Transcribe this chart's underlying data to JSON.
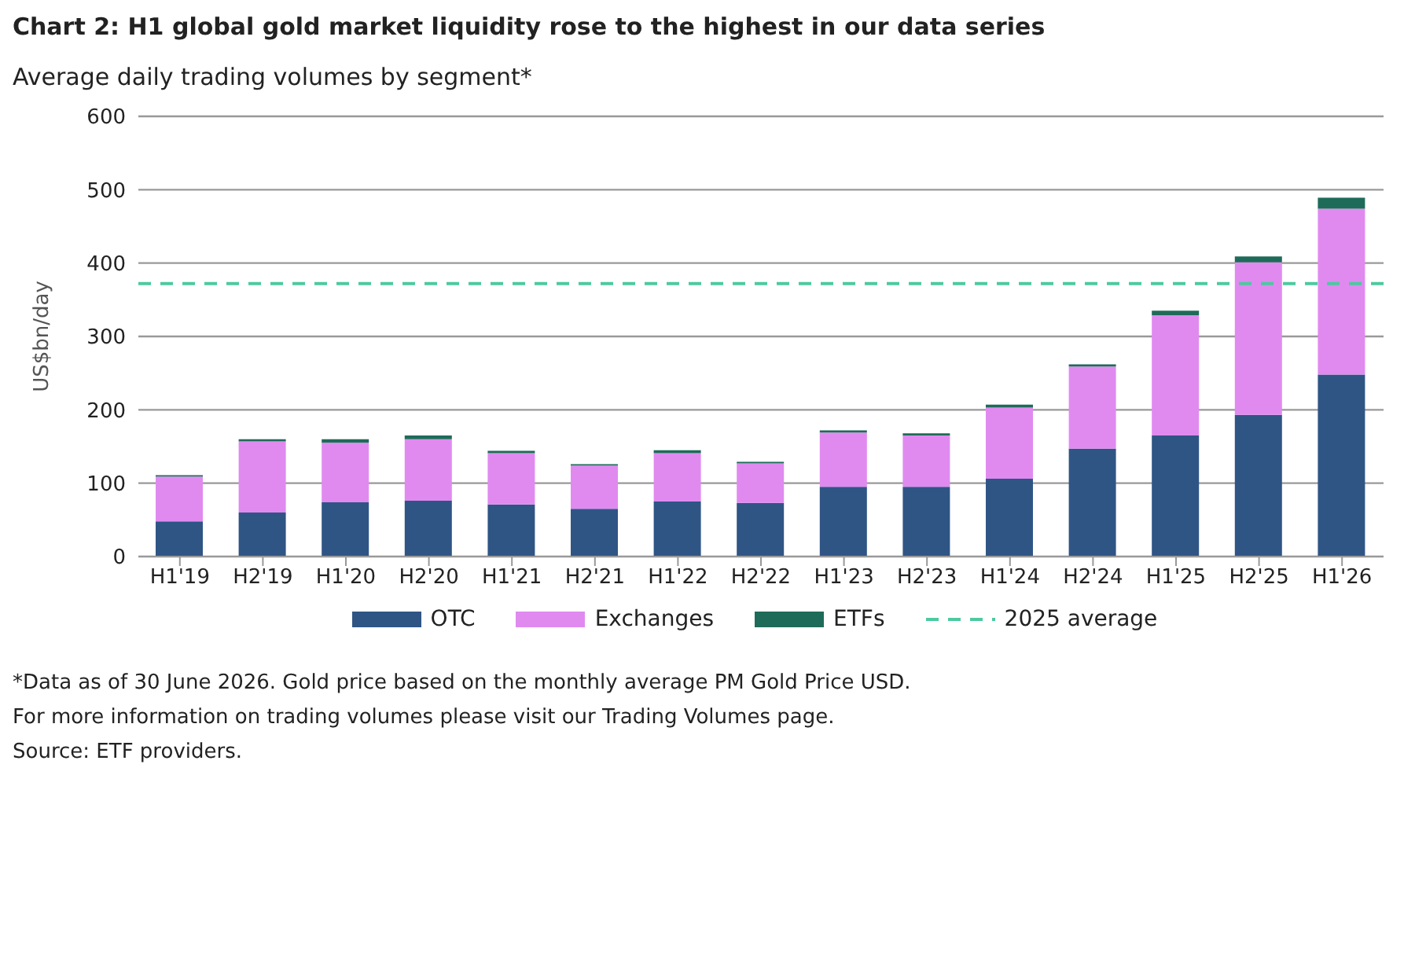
{
  "chart_data": {
    "type": "bar",
    "title": "Chart 2: H1 global gold market liquidity rose to the highest in our data series",
    "subtitle": "Average daily trading volumes by segment*",
    "ylabel": "US$bn/day",
    "categories": [
      "H1'19",
      "H2'19",
      "H1'20",
      "H2'20",
      "H1'21",
      "H2'21",
      "H1'22",
      "H2'22",
      "H1'23",
      "H2'23",
      "H1'24",
      "H2'24",
      "H1'25",
      "H2'25",
      "H1'26"
    ],
    "series": [
      {
        "name": "OTC",
        "color": "#2f5585",
        "values": [
          48,
          60,
          74,
          76,
          71,
          65,
          75,
          73,
          95,
          95,
          106,
          147,
          165,
          193,
          248
        ]
      },
      {
        "name": "Exchanges",
        "color": "#e08af0",
        "values": [
          61,
          97,
          81,
          84,
          70,
          59,
          66,
          54,
          74,
          70,
          97,
          112,
          164,
          208,
          226
        ]
      },
      {
        "name": "ETFs",
        "color": "#1f6b5a",
        "values": [
          2,
          3,
          5,
          5,
          3,
          2,
          4,
          2,
          3,
          3,
          4,
          3,
          6,
          8,
          15
        ]
      }
    ],
    "stacked": true,
    "ylim": [
      0,
      600
    ],
    "yticks": [
      0,
      100,
      200,
      300,
      400,
      500,
      600
    ],
    "grid": "y",
    "legend": "bottom",
    "ref_lines": [
      {
        "axis": "y",
        "value": 372,
        "label": "2025 average",
        "color": "#4cc9a0",
        "line_style": "dashed"
      }
    ],
    "annotations": [
      "*Data as of 30 June 2026. Gold price based on the monthly average PM Gold Price USD.",
      "For more information on trading volumes please visit our Trading Volumes page.",
      "Source: ETF providers."
    ]
  }
}
